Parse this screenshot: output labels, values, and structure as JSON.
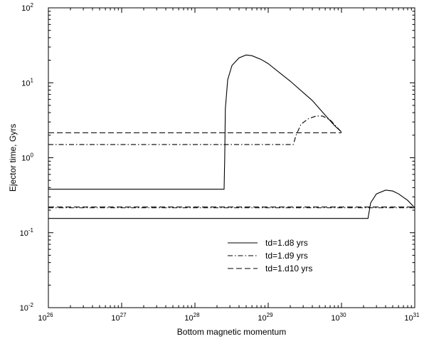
{
  "chart_data": {
    "type": "line",
    "title": "",
    "xlabel": "Bottom magnetic momentum",
    "ylabel": "Ejector time, Gyrs",
    "xscale": "log",
    "yscale": "log",
    "xlim": [
      1e+26,
      1e+31
    ],
    "ylim": [
      0.01,
      100
    ],
    "grid": false,
    "legend_position": "lower-center",
    "x_ticks": [
      {
        "value": 1e+26,
        "base": "10",
        "exp": "26"
      },
      {
        "value": 1e+27,
        "base": "10",
        "exp": "27"
      },
      {
        "value": 1e+28,
        "base": "10",
        "exp": "28"
      },
      {
        "value": 1e+29,
        "base": "10",
        "exp": "29"
      },
      {
        "value": 1e+30,
        "base": "10",
        "exp": "30"
      },
      {
        "value": 1e+31,
        "base": "10",
        "exp": "31"
      }
    ],
    "y_ticks": [
      {
        "value": 0.01,
        "base": "10",
        "exp": "-2"
      },
      {
        "value": 0.1,
        "base": "10",
        "exp": "-1"
      },
      {
        "value": 1,
        "base": "10",
        "exp": "0"
      },
      {
        "value": 10,
        "base": "10",
        "exp": "1"
      },
      {
        "value": 100,
        "base": "10",
        "exp": "2"
      }
    ],
    "series": [
      {
        "name": "td=1.d8 yrs",
        "dash": "solid",
        "color": "#000000",
        "segments": [
          [
            [
              1e+26,
              0.38
            ],
            [
              2.5e+28,
              0.38
            ],
            [
              2.55e+28,
              1.0
            ],
            [
              2.6e+28,
              4.5
            ],
            [
              2.8e+28,
              11.0
            ],
            [
              3.2e+28,
              17.0
            ],
            [
              4e+28,
              21.5
            ],
            [
              5e+28,
              23.5
            ],
            [
              6e+28,
              23.0
            ],
            [
              8e+28,
              20.5
            ],
            [
              1e+29,
              18.0
            ],
            [
              2e+29,
              10.5
            ],
            [
              4e+29,
              5.8
            ],
            [
              6e+29,
              3.7
            ],
            [
              8e+29,
              2.7
            ],
            [
              1e+30,
              2.2
            ]
          ],
          [
            [
              1e+26,
              0.155
            ],
            [
              2.3e+30,
              0.155
            ],
            [
              2.5e+30,
              0.25
            ],
            [
              3e+30,
              0.33
            ],
            [
              4e+30,
              0.37
            ],
            [
              5e+30,
              0.36
            ],
            [
              6e+30,
              0.33
            ],
            [
              8e+30,
              0.27
            ],
            [
              1e+31,
              0.215
            ]
          ]
        ]
      },
      {
        "name": "td=1.d9 yrs",
        "dash": "dash-dot",
        "color": "#000000",
        "segments": [
          [
            [
              1e+26,
              1.5
            ],
            [
              2.2e+29,
              1.5
            ],
            [
              2.4e+29,
              2.0
            ],
            [
              2.8e+29,
              2.8
            ],
            [
              3.5e+29,
              3.3
            ],
            [
              4.5e+29,
              3.6
            ],
            [
              5.5e+29,
              3.6
            ],
            [
              7e+29,
              3.2
            ],
            [
              8.5e+29,
              2.6
            ],
            [
              1e+30,
              2.2
            ]
          ],
          [
            [
              1e+26,
              0.215
            ],
            [
              1e+31,
              0.215
            ]
          ]
        ]
      },
      {
        "name": "td=1.d10 yrs",
        "dash": "dashed",
        "color": "#000000",
        "segments": [
          [
            [
              1e+26,
              2.15
            ],
            [
              1e+30,
              2.15
            ]
          ],
          [
            [
              1e+26,
              0.22
            ],
            [
              1e+31,
              0.22
            ]
          ]
        ]
      }
    ]
  }
}
